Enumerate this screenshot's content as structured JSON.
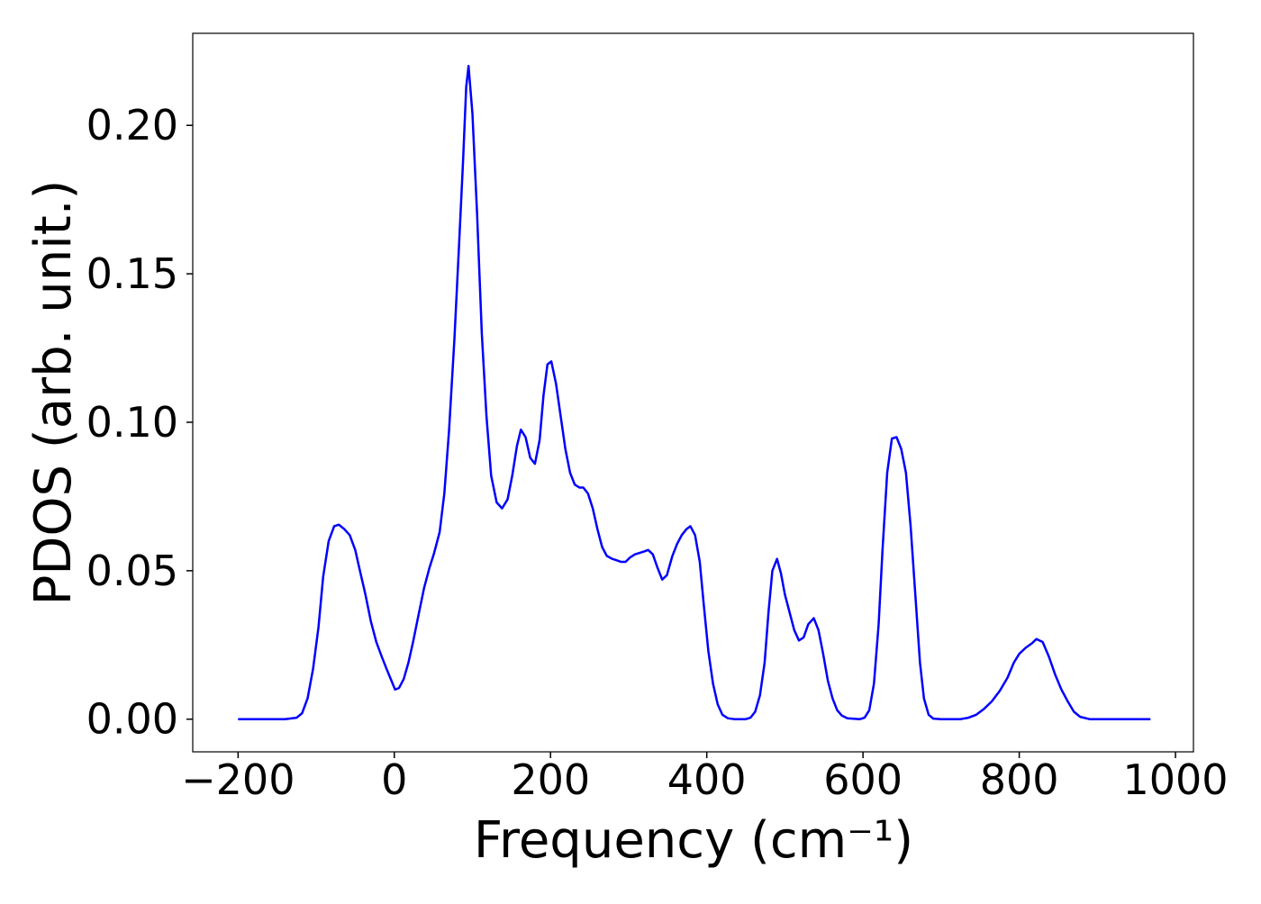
{
  "chart_data": {
    "type": "line",
    "xlabel": "Frequency (cm⁻¹)",
    "ylabel": "PDOS (arb. unit.)",
    "xlim": [
      -258,
      1023
    ],
    "ylim": [
      -0.011,
      0.231
    ],
    "xticks": [
      {
        "value": -200,
        "label": "−200"
      },
      0,
      200,
      400,
      600,
      800,
      1000
    ],
    "yticks": [
      {
        "value": 0,
        "label": "0.00"
      },
      {
        "value": 0.05,
        "label": "0.05"
      },
      {
        "value": 0.1,
        "label": "0.10"
      },
      {
        "value": 0.15,
        "label": "0.15"
      },
      {
        "value": 0.2,
        "label": "0.20"
      }
    ],
    "grid": false,
    "x": [
      -200,
      -140,
      -125,
      -118,
      -111,
      -104,
      -97,
      -91,
      -84,
      -77,
      -71,
      -64,
      -57,
      -50,
      -44,
      -37,
      -30,
      -23,
      -16,
      -10,
      -3,
      1,
      6,
      12,
      18,
      24,
      31,
      38,
      45,
      51,
      58,
      64,
      70,
      77,
      83,
      88,
      92,
      95,
      100,
      106,
      112,
      118,
      124,
      131,
      138,
      145,
      151,
      157,
      162,
      168,
      174,
      180,
      186,
      191,
      196,
      201,
      207,
      213,
      219,
      225,
      231,
      237,
      242,
      248,
      254,
      260,
      266,
      272,
      279,
      285,
      290,
      296,
      302,
      308,
      314,
      320,
      325,
      331,
      337,
      343,
      349,
      356,
      362,
      368,
      374,
      379,
      385,
      391,
      396,
      402,
      408,
      414,
      420,
      427,
      435,
      450,
      456,
      462,
      468,
      474,
      479,
      484,
      490,
      495,
      500,
      506,
      512,
      518,
      524,
      530,
      537,
      543,
      549,
      555,
      561,
      567,
      573,
      580,
      596,
      602,
      608,
      614,
      620,
      625,
      631,
      637,
      643,
      649,
      655,
      661,
      667,
      673,
      678,
      684,
      690,
      700,
      725,
      735,
      745,
      755,
      765,
      775,
      785,
      793,
      800,
      808,
      816,
      822,
      830,
      838,
      846,
      854,
      862,
      870,
      878,
      890,
      968
    ],
    "series": [
      {
        "color": "#0000ff",
        "values": [
          0,
          0,
          0.0005,
          0.002,
          0.007,
          0.017,
          0.031,
          0.048,
          0.06,
          0.065,
          0.0655,
          0.064,
          0.062,
          0.057,
          0.05,
          0.042,
          0.033,
          0.026,
          0.021,
          0.017,
          0.0125,
          0.01,
          0.0105,
          0.0135,
          0.019,
          0.026,
          0.035,
          0.044,
          0.051,
          0.056,
          0.063,
          0.076,
          0.097,
          0.128,
          0.16,
          0.188,
          0.213,
          0.22,
          0.204,
          0.17,
          0.13,
          0.102,
          0.082,
          0.073,
          0.071,
          0.074,
          0.082,
          0.092,
          0.0975,
          0.095,
          0.088,
          0.086,
          0.094,
          0.109,
          0.1195,
          0.1205,
          0.113,
          0.102,
          0.091,
          0.083,
          0.079,
          0.078,
          0.078,
          0.076,
          0.071,
          0.064,
          0.058,
          0.055,
          0.054,
          0.0535,
          0.053,
          0.053,
          0.0545,
          0.0555,
          0.056,
          0.0565,
          0.057,
          0.0555,
          0.051,
          0.047,
          0.0485,
          0.055,
          0.059,
          0.062,
          0.064,
          0.065,
          0.062,
          0.053,
          0.039,
          0.023,
          0.012,
          0.005,
          0.0015,
          0.0003,
          0,
          0,
          0.0005,
          0.0025,
          0.008,
          0.019,
          0.036,
          0.05,
          0.054,
          0.049,
          0.042,
          0.036,
          0.03,
          0.0265,
          0.0275,
          0.032,
          0.034,
          0.03,
          0.022,
          0.013,
          0.007,
          0.003,
          0.0012,
          0.0003,
          0,
          0.0005,
          0.003,
          0.012,
          0.032,
          0.057,
          0.083,
          0.0945,
          0.095,
          0.091,
          0.083,
          0.065,
          0.042,
          0.019,
          0.007,
          0.0015,
          0.0002,
          0,
          0,
          0.0005,
          0.0015,
          0.0035,
          0.006,
          0.0095,
          0.014,
          0.019,
          0.022,
          0.024,
          0.0255,
          0.027,
          0.026,
          0.021,
          0.015,
          0.01,
          0.006,
          0.0025,
          0.0008,
          0,
          0
        ]
      }
    ]
  }
}
